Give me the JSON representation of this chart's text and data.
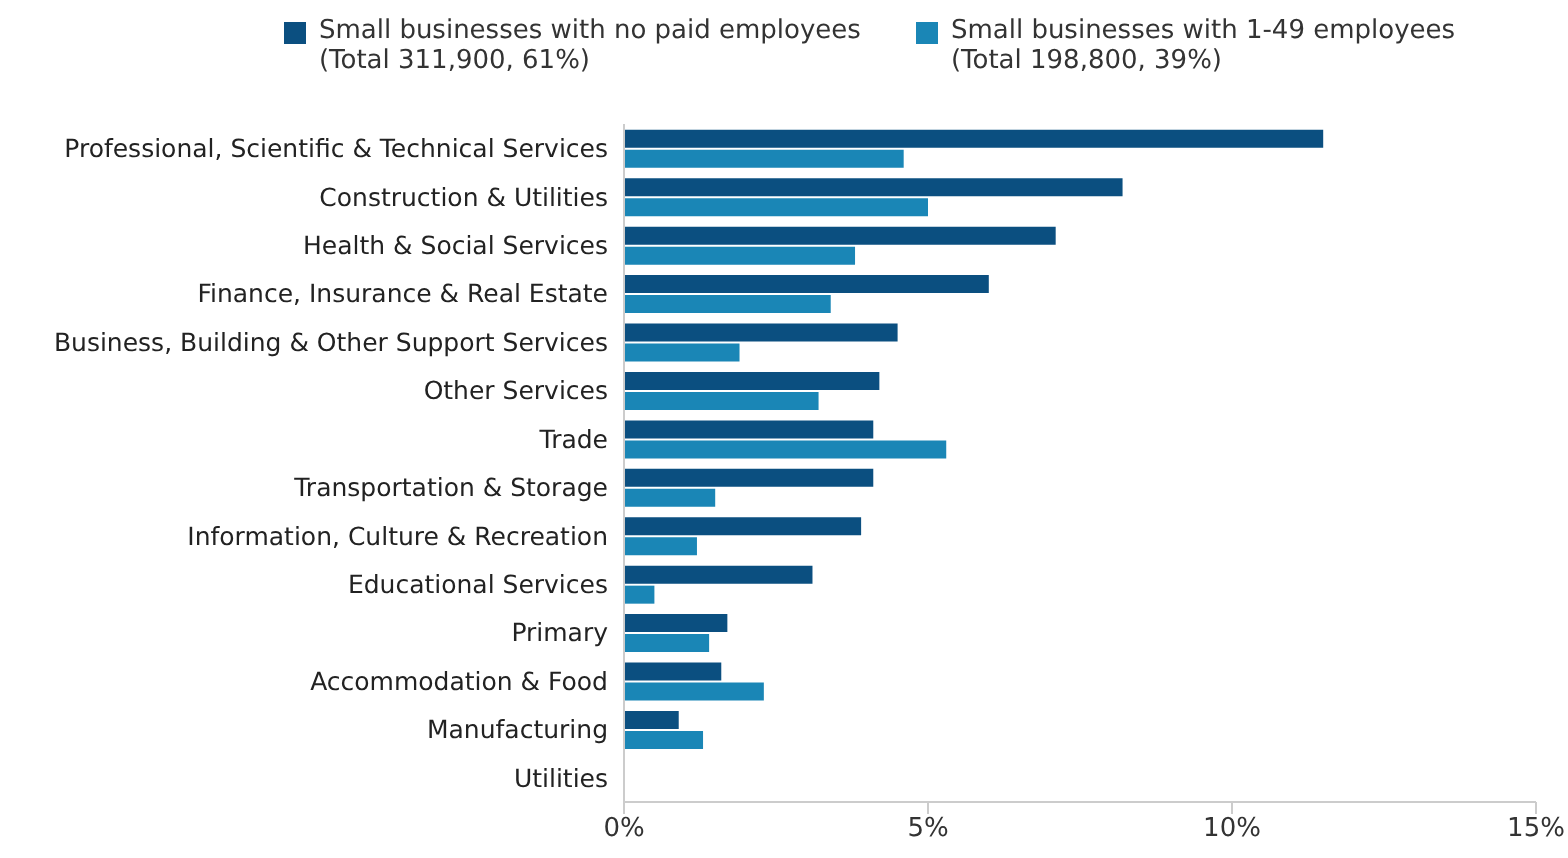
{
  "chart_data": {
    "type": "bar",
    "orientation": "horizontal",
    "categories": [
      "Professional, Scientific & Technical Services",
      "Construction & Utilities",
      "Health & Social Services",
      "Finance, Insurance & Real Estate",
      "Business, Building & Other Support Services",
      "Other Services",
      "Trade",
      "Transportation & Storage",
      "Information, Culture & Recreation",
      "Educational Services",
      "Primary",
      "Accommodation & Food",
      "Manufacturing",
      "Utilities"
    ],
    "series": [
      {
        "name": "Small businesses with no paid employees\n(Total 311,900, 61%)",
        "color": "#0b4f80",
        "values": [
          11.5,
          8.2,
          7.1,
          6.0,
          4.5,
          4.2,
          4.1,
          4.1,
          3.9,
          3.1,
          1.7,
          1.6,
          0.9,
          0
        ]
      },
      {
        "name": "Small businesses with 1-49 employees\n(Total 198,800, 39%)",
        "color": "#1a86b6",
        "values": [
          4.6,
          5.0,
          3.8,
          3.4,
          1.9,
          3.2,
          5.3,
          1.5,
          1.2,
          0.5,
          1.4,
          2.3,
          1.3,
          0
        ]
      }
    ],
    "xlim": [
      0,
      15
    ],
    "xticks": [
      {
        "value": 0,
        "label": "0%"
      },
      {
        "value": 5,
        "label": "5%"
      },
      {
        "value": 10,
        "label": "10%"
      },
      {
        "value": 15,
        "label": "15%"
      }
    ],
    "legend": "top",
    "grid": false
  }
}
